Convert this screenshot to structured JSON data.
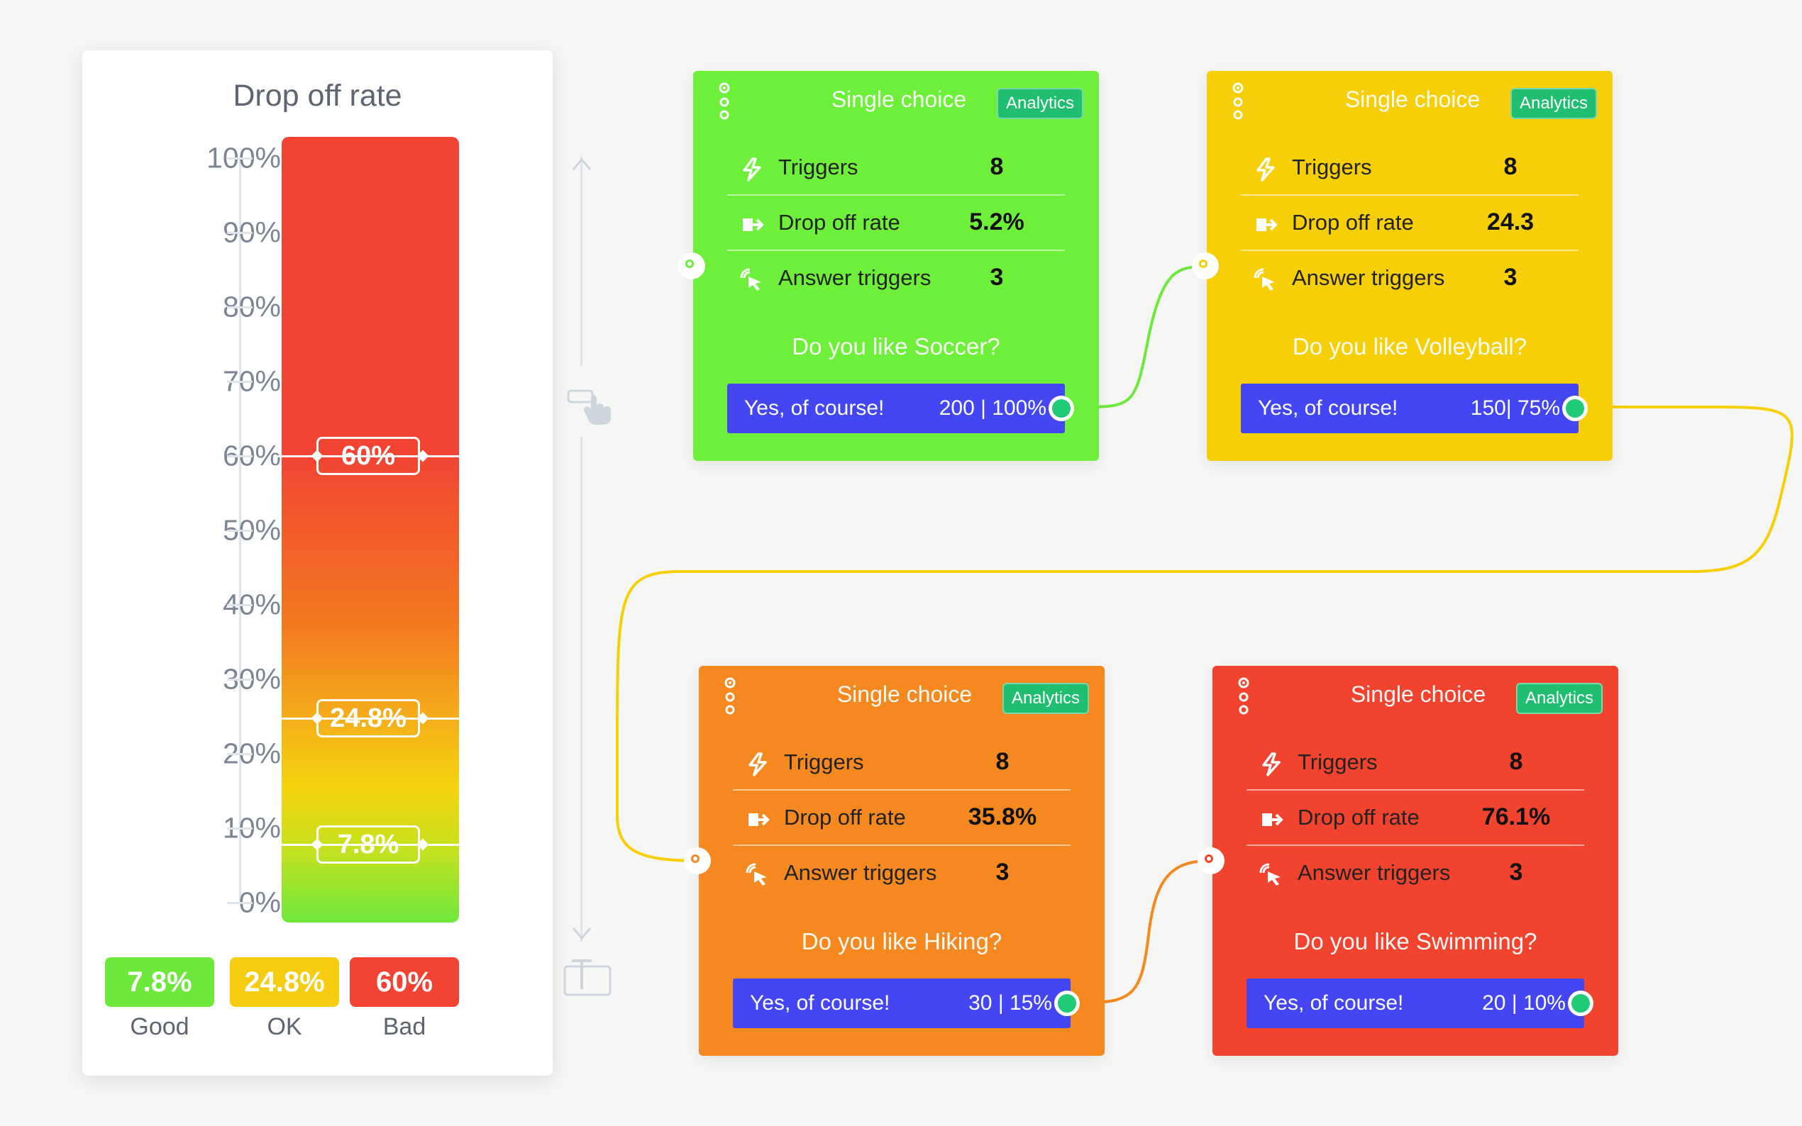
{
  "panel": {
    "title": "Drop off rate",
    "scale": [
      "100%",
      "90%",
      "80%",
      "70%",
      "60%",
      "50%",
      "40%",
      "30%",
      "20%",
      "10%",
      "0%"
    ],
    "markers": [
      {
        "label": "60%",
        "value": 60
      },
      {
        "label": "24.8%",
        "value": 24.8
      },
      {
        "label": "7.8%",
        "value": 7.8
      }
    ],
    "legend": [
      {
        "value": "7.8%",
        "label": "Good",
        "color": "#6ee83b"
      },
      {
        "value": "24.8%",
        "label": "OK",
        "color": "#f5cc0f"
      },
      {
        "value": "60%",
        "label": "Bad",
        "color": "#f24333"
      }
    ],
    "icons": [
      "arrow-up-icon",
      "arrow-down-icon",
      "drag-hand-icon",
      "text-field-icon"
    ]
  },
  "cards": [
    {
      "title": "Single choice",
      "badge": "Analytics",
      "color": "#6ef03a",
      "rows": [
        {
          "label": "Triggers",
          "value": "8",
          "icon": "lightning-icon"
        },
        {
          "label": "Drop off rate",
          "value": "5.2%",
          "icon": "exit-icon"
        },
        {
          "label": "Answer triggers",
          "value": "3",
          "icon": "cursor-click-icon"
        }
      ],
      "question": "Do you like Soccer?",
      "answer": {
        "label": "Yes, of course!",
        "stat": "200 | 100%"
      }
    },
    {
      "title": "Single choice",
      "badge": "Analytics",
      "color": "#f6cf07",
      "rows": [
        {
          "label": "Triggers",
          "value": "8",
          "icon": "lightning-icon"
        },
        {
          "label": "Drop off rate",
          "value": "24.3",
          "icon": "exit-icon"
        },
        {
          "label": "Answer triggers",
          "value": "3",
          "icon": "cursor-click-icon"
        }
      ],
      "question": "Do you like Volleyball?",
      "answer": {
        "label": "Yes, of course!",
        "stat": "150| 75%"
      }
    },
    {
      "title": "Single choice",
      "badge": "Analytics",
      "color": "#f5891f",
      "rows": [
        {
          "label": "Triggers",
          "value": "8",
          "icon": "lightning-icon"
        },
        {
          "label": "Drop off rate",
          "value": "35.8%",
          "icon": "exit-icon"
        },
        {
          "label": "Answer triggers",
          "value": "3",
          "icon": "cursor-click-icon"
        }
      ],
      "question": "Do you like Hiking?",
      "answer": {
        "label": "Yes, of course!",
        "stat": "30 | 15%"
      }
    },
    {
      "title": "Single choice",
      "badge": "Analytics",
      "color": "#f2432f",
      "rows": [
        {
          "label": "Triggers",
          "value": "8",
          "icon": "lightning-icon"
        },
        {
          "label": "Drop off rate",
          "value": "76.1%",
          "icon": "exit-icon"
        },
        {
          "label": "Answer triggers",
          "value": "3",
          "icon": "cursor-click-icon"
        }
      ],
      "question": "Do you like Swimming?",
      "answer": {
        "label": "Yes, of course!",
        "stat": "20 | 10%"
      }
    }
  ]
}
